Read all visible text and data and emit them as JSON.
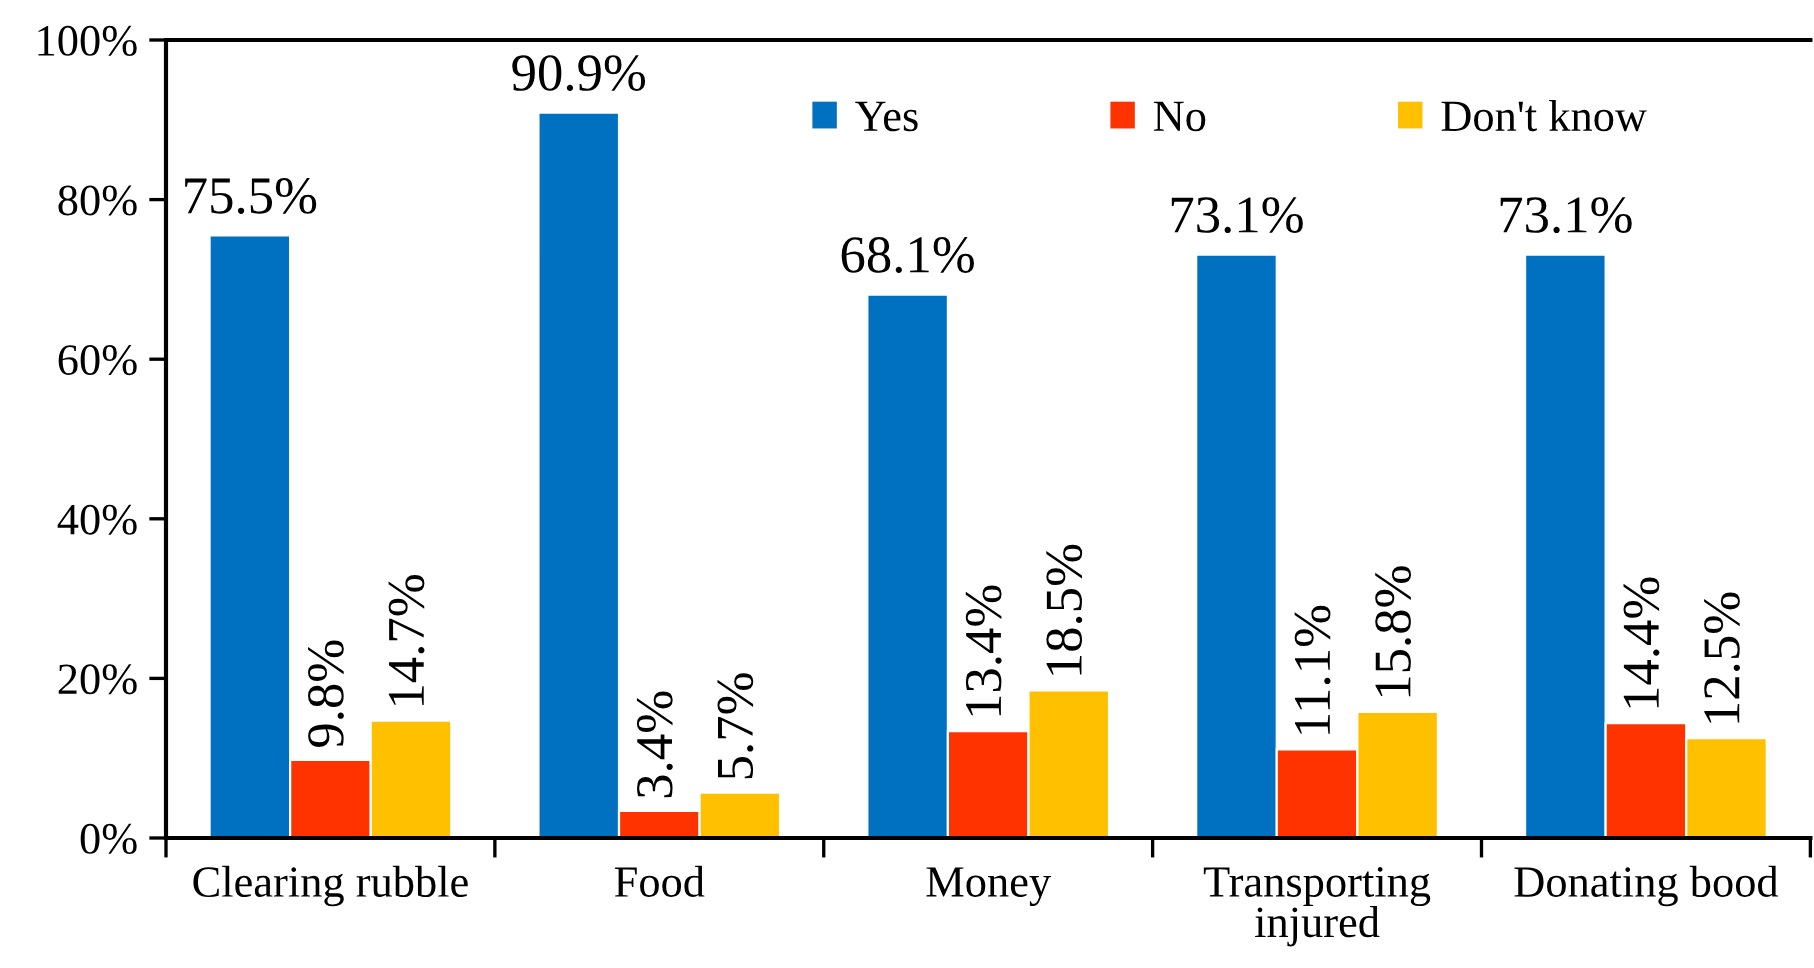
{
  "chart_data": {
    "type": "bar",
    "categories": [
      "Clearing rubble",
      "Food",
      "Money",
      "Transporting injured",
      "Donating bood"
    ],
    "series": [
      {
        "name": "Yes",
        "color": "#0070c0",
        "values": [
          75.5,
          90.9,
          68.1,
          73.1,
          73.1
        ],
        "value_labels": [
          "75.5%",
          "90.9%",
          "68.1%",
          "73.1%",
          "73.1%"
        ]
      },
      {
        "name": "No",
        "color": "#ff3300",
        "values": [
          9.8,
          3.4,
          13.4,
          11.1,
          14.4
        ],
        "value_labels": [
          "9.8%",
          "3.4%",
          "13.4%",
          "11.1%",
          "14.4%"
        ]
      },
      {
        "name": "Don't know",
        "color": "#ffc000",
        "values": [
          14.7,
          5.7,
          18.5,
          15.8,
          12.5
        ],
        "value_labels": [
          "14.7%",
          "5.7%",
          "18.5%",
          "15.8%",
          "12.5%"
        ]
      }
    ],
    "ylim": [
      0,
      100
    ],
    "yticks": [
      {
        "value": 0,
        "label": "0%"
      },
      {
        "value": 20,
        "label": "20%"
      },
      {
        "value": 40,
        "label": "40%"
      },
      {
        "value": 60,
        "label": "60%"
      },
      {
        "value": 80,
        "label": "80%"
      },
      {
        "value": 100,
        "label": "100%"
      }
    ],
    "legend": "top right"
  }
}
